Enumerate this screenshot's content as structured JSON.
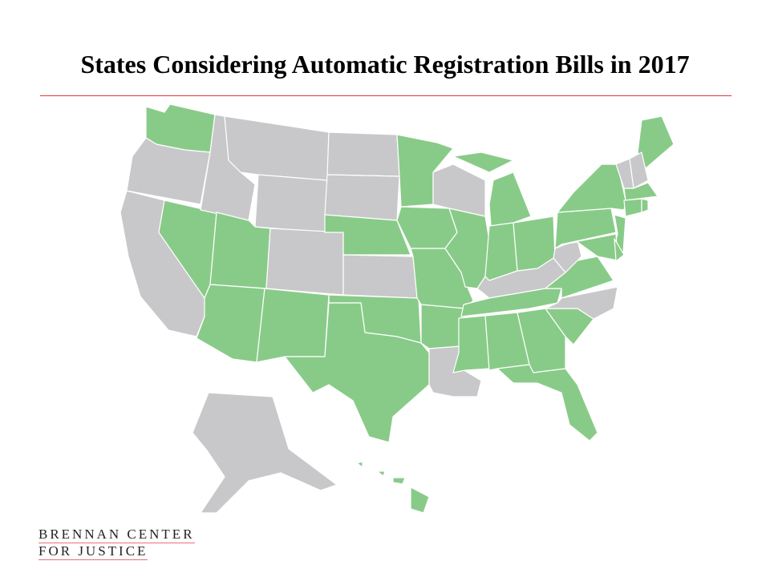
{
  "title": "States Considering Automatic Registration Bills in 2017",
  "colors": {
    "considering": "#88cb88",
    "not_considering": "#c8c8ca",
    "rule": "#e0393b"
  },
  "states": {
    "WA": "considering",
    "OR": "not",
    "CA": "not",
    "NV": "considering",
    "ID": "not",
    "MT": "not",
    "WY": "not",
    "UT": "considering",
    "CO": "not",
    "AZ": "considering",
    "NM": "considering",
    "ND": "not",
    "SD": "not",
    "NE": "considering",
    "KS": "not",
    "OK": "considering",
    "TX": "considering",
    "MN": "considering",
    "IA": "considering",
    "MO": "considering",
    "AR": "considering",
    "LA": "not",
    "WI": "not",
    "IL": "considering",
    "MI": "considering",
    "IN": "considering",
    "OH": "considering",
    "KY": "not",
    "TN": "considering",
    "MS": "considering",
    "AL": "considering",
    "GA": "considering",
    "FL": "considering",
    "SC": "considering",
    "NC": "not",
    "VA": "considering",
    "WV": "not",
    "PA": "considering",
    "NY": "considering",
    "NJ": "considering",
    "MD": "considering",
    "DE": "considering",
    "ME": "considering",
    "VT": "not",
    "NH": "not",
    "MA": "considering",
    "CT": "considering",
    "RI": "considering",
    "AK": "not",
    "HI": "considering"
  },
  "logo": {
    "line1": "BRENNAN CENTER",
    "line2": "FOR JUSTICE"
  }
}
